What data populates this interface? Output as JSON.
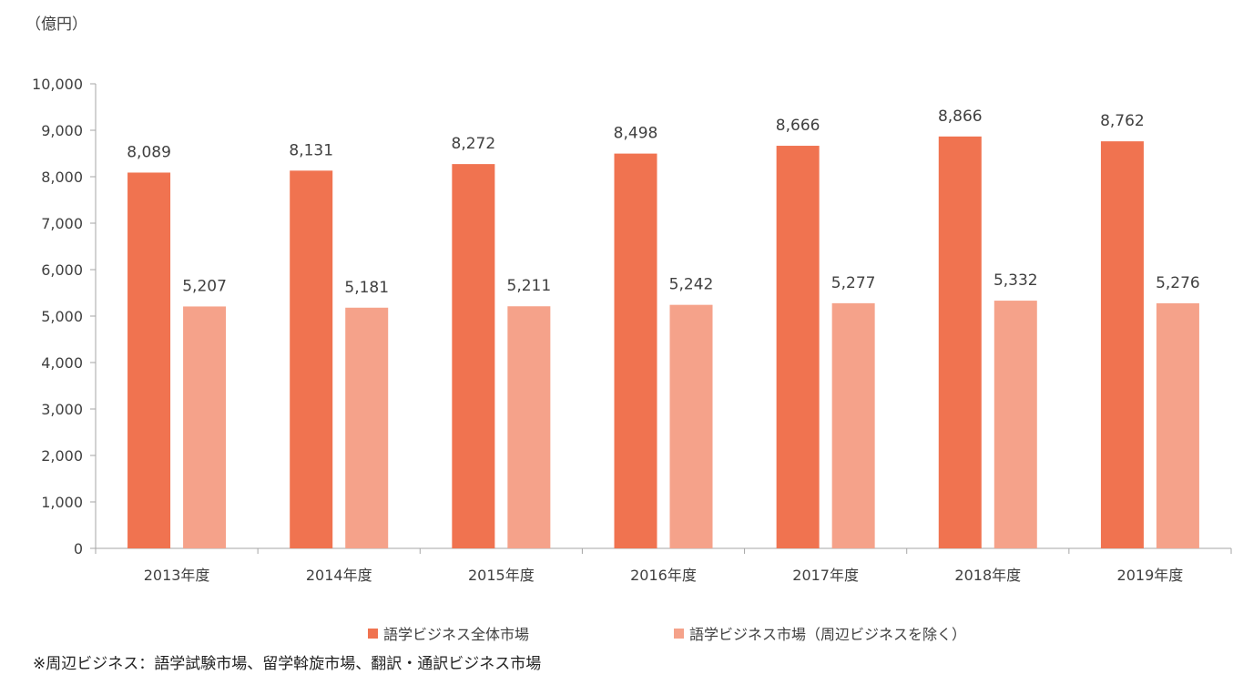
{
  "chart_data": {
    "type": "bar",
    "unit_label": "（億円）",
    "categories": [
      "2013年度",
      "2014年度",
      "2015年度",
      "2016年度",
      "2017年度",
      "2018年度",
      "2019年度"
    ],
    "series": [
      {
        "name": "語学ビジネス全体市場",
        "color": "#F07350",
        "values": [
          8089,
          8131,
          8272,
          8498,
          8666,
          8866,
          8762
        ]
      },
      {
        "name": "語学ビジネス市場（周辺ビジネスを除く）",
        "color": "#F5A28A",
        "values": [
          5207,
          5181,
          5211,
          5242,
          5277,
          5332,
          5276
        ]
      }
    ],
    "ylim": [
      0,
      10000
    ],
    "yticks": [
      0,
      1000,
      2000,
      3000,
      4000,
      5000,
      6000,
      7000,
      8000,
      9000,
      10000
    ],
    "ytick_labels": [
      "0",
      "1,000",
      "2,000",
      "3,000",
      "4,000",
      "5,000",
      "6,000",
      "7,000",
      "8,000",
      "9,000",
      "10,000"
    ],
    "legend_position": "bottom",
    "grid": false
  },
  "footnote": "※周辺ビジネス：語学試験市場、留学斡旋市場、翻訳・通訳ビジネス市場"
}
